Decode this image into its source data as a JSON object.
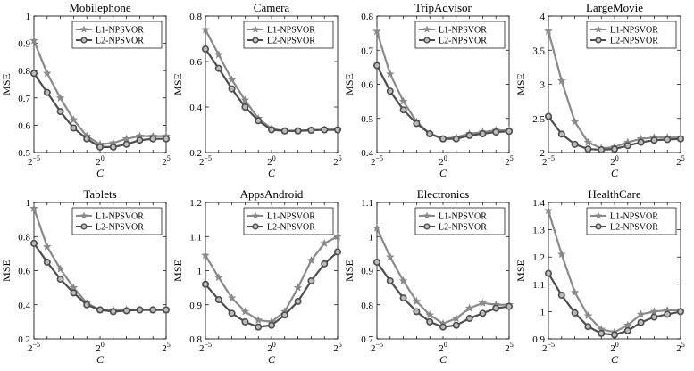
{
  "figure": {
    "ylabel": "MSE",
    "xlabel": "C"
  },
  "colors": {
    "L1": "#8a8a8a",
    "L2": "#4d4d4d",
    "axis": "#000000"
  },
  "chart_data": [
    {
      "type": "line",
      "title": "Mobilephone",
      "xlabel": "C",
      "ylabel": "MSE",
      "x_exponents": [
        -5,
        -4,
        -3,
        -2,
        -1,
        0,
        1,
        2,
        3,
        4,
        5
      ],
      "x_ticks": [
        {
          "base": "2",
          "exp": "−5",
          "value": -5
        },
        {
          "base": "2",
          "exp": "0",
          "value": 0
        },
        {
          "base": "2",
          "exp": "5",
          "value": 5
        }
      ],
      "ylim": [
        0.5,
        1
      ],
      "yticks": [
        "0.5",
        "0.6",
        "0.7",
        "0.8",
        "0.9",
        "1"
      ],
      "legend_position": "top-right",
      "series": [
        {
          "name": "L1-NPSVOR",
          "marker": "star",
          "values": [
            0.91,
            0.79,
            0.7,
            0.62,
            0.56,
            0.53,
            0.535,
            0.55,
            0.56,
            0.56,
            0.56
          ]
        },
        {
          "name": "L2-NPSVOR",
          "marker": "circle",
          "values": [
            0.79,
            0.72,
            0.65,
            0.59,
            0.55,
            0.52,
            0.52,
            0.53,
            0.545,
            0.55,
            0.55
          ]
        }
      ]
    },
    {
      "type": "line",
      "title": "Camera",
      "xlabel": "C",
      "ylabel": "MSE",
      "x_exponents": [
        -5,
        -4,
        -3,
        -2,
        -1,
        0,
        1,
        2,
        3,
        4,
        5
      ],
      "x_ticks": [
        {
          "base": "2",
          "exp": "−5",
          "value": -5
        },
        {
          "base": "2",
          "exp": "0",
          "value": 0
        },
        {
          "base": "2",
          "exp": "5",
          "value": 5
        }
      ],
      "ylim": [
        0.2,
        0.8
      ],
      "yticks": [
        "0.2",
        "0.4",
        "0.6",
        "0.8"
      ],
      "legend_position": "top-right",
      "series": [
        {
          "name": "L1-NPSVOR",
          "marker": "star",
          "values": [
            0.74,
            0.63,
            0.52,
            0.43,
            0.35,
            0.305,
            0.295,
            0.295,
            0.298,
            0.3,
            0.3
          ]
        },
        {
          "name": "L2-NPSVOR",
          "marker": "circle",
          "values": [
            0.655,
            0.57,
            0.48,
            0.4,
            0.34,
            0.3,
            0.295,
            0.295,
            0.298,
            0.3,
            0.3
          ]
        }
      ]
    },
    {
      "type": "line",
      "title": "TripAdvisor",
      "xlabel": "C",
      "ylabel": "MSE",
      "x_exponents": [
        -5,
        -4,
        -3,
        -2,
        -1,
        0,
        1,
        2,
        3,
        4,
        5
      ],
      "x_ticks": [
        {
          "base": "2",
          "exp": "−5",
          "value": -5
        },
        {
          "base": "2",
          "exp": "0",
          "value": 0
        },
        {
          "base": "2",
          "exp": "5",
          "value": 5
        }
      ],
      "ylim": [
        0.4,
        0.8
      ],
      "yticks": [
        "0.4",
        "0.5",
        "0.6",
        "0.7",
        "0.8"
      ],
      "legend_position": "top-right",
      "series": [
        {
          "name": "L1-NPSVOR",
          "marker": "star",
          "values": [
            0.755,
            0.63,
            0.55,
            0.49,
            0.455,
            0.44,
            0.445,
            0.455,
            0.46,
            0.465,
            0.465
          ]
        },
        {
          "name": "L2-NPSVOR",
          "marker": "circle",
          "values": [
            0.655,
            0.58,
            0.525,
            0.485,
            0.455,
            0.44,
            0.44,
            0.45,
            0.455,
            0.46,
            0.462
          ]
        }
      ]
    },
    {
      "type": "line",
      "title": "LargeMovie",
      "xlabel": "C",
      "ylabel": "MSE",
      "x_exponents": [
        -5,
        -4,
        -3,
        -2,
        -1,
        0,
        1,
        2,
        3,
        4,
        5
      ],
      "x_ticks": [
        {
          "base": "2",
          "exp": "−5",
          "value": -5
        },
        {
          "base": "2",
          "exp": "0",
          "value": 0
        },
        {
          "base": "2",
          "exp": "5",
          "value": 5
        }
      ],
      "ylim": [
        2,
        4
      ],
      "yticks": [
        "2",
        "2.5",
        "3",
        "3.5",
        "4"
      ],
      "legend_position": "top-right",
      "series": [
        {
          "name": "L1-NPSVOR",
          "marker": "star",
          "values": [
            3.78,
            3.05,
            2.45,
            2.15,
            2.06,
            2.08,
            2.15,
            2.2,
            2.22,
            2.22,
            2.22
          ]
        },
        {
          "name": "L2-NPSVOR",
          "marker": "circle",
          "values": [
            2.53,
            2.27,
            2.12,
            2.05,
            2.04,
            2.05,
            2.1,
            2.15,
            2.18,
            2.19,
            2.2
          ]
        }
      ]
    },
    {
      "type": "line",
      "title": "Tablets",
      "xlabel": "C",
      "ylabel": "MSE",
      "x_exponents": [
        -5,
        -4,
        -3,
        -2,
        -1,
        0,
        1,
        2,
        3,
        4,
        5
      ],
      "x_ticks": [
        {
          "base": "2",
          "exp": "−5",
          "value": -5
        },
        {
          "base": "2",
          "exp": "0",
          "value": 0
        },
        {
          "base": "2",
          "exp": "5",
          "value": 5
        }
      ],
      "ylim": [
        0.2,
        1
      ],
      "yticks": [
        "0.2",
        "0.4",
        "0.6",
        "0.8",
        "1"
      ],
      "legend_position": "top-right",
      "series": [
        {
          "name": "L1-NPSVOR",
          "marker": "star",
          "values": [
            0.965,
            0.74,
            0.61,
            0.5,
            0.41,
            0.37,
            0.37,
            0.37,
            0.37,
            0.37,
            0.37
          ]
        },
        {
          "name": "L2-NPSVOR",
          "marker": "circle",
          "values": [
            0.76,
            0.65,
            0.55,
            0.47,
            0.4,
            0.37,
            0.36,
            0.365,
            0.37,
            0.37,
            0.37
          ]
        }
      ]
    },
    {
      "type": "line",
      "title": "AppsAndroid",
      "xlabel": "C",
      "ylabel": "MSE",
      "x_exponents": [
        -5,
        -4,
        -3,
        -2,
        -1,
        0,
        1,
        2,
        3,
        4,
        5
      ],
      "x_ticks": [
        {
          "base": "2",
          "exp": "−5",
          "value": -5
        },
        {
          "base": "2",
          "exp": "0",
          "value": 0
        },
        {
          "base": "2",
          "exp": "5",
          "value": 5
        }
      ],
      "ylim": [
        0.8,
        1.2
      ],
      "yticks": [
        "0.8",
        "0.9",
        "1",
        "1.1",
        "1.2"
      ],
      "legend_position": "top-right",
      "series": [
        {
          "name": "L1-NPSVOR",
          "marker": "star",
          "values": [
            1.045,
            0.98,
            0.92,
            0.88,
            0.855,
            0.85,
            0.88,
            0.95,
            1.03,
            1.08,
            1.1
          ]
        },
        {
          "name": "L2-NPSVOR",
          "marker": "circle",
          "values": [
            0.96,
            0.915,
            0.875,
            0.85,
            0.835,
            0.84,
            0.87,
            0.91,
            0.97,
            1.02,
            1.055
          ]
        }
      ]
    },
    {
      "type": "line",
      "title": "Electronics",
      "xlabel": "C",
      "ylabel": "MSE",
      "x_exponents": [
        -5,
        -4,
        -3,
        -2,
        -1,
        0,
        1,
        2,
        3,
        4,
        5
      ],
      "x_ticks": [
        {
          "base": "2",
          "exp": "−5",
          "value": -5
        },
        {
          "base": "2",
          "exp": "0",
          "value": 0
        },
        {
          "base": "2",
          "exp": "5",
          "value": 5
        }
      ],
      "ylim": [
        0.7,
        1.1
      ],
      "yticks": [
        "0.7",
        "0.8",
        "0.9",
        "1",
        "1.1"
      ],
      "legend_position": "top-right",
      "series": [
        {
          "name": "L1-NPSVOR",
          "marker": "star",
          "values": [
            1.025,
            0.94,
            0.87,
            0.81,
            0.77,
            0.745,
            0.76,
            0.79,
            0.805,
            0.8,
            0.8
          ]
        },
        {
          "name": "L2-NPSVOR",
          "marker": "circle",
          "values": [
            0.925,
            0.87,
            0.82,
            0.78,
            0.75,
            0.735,
            0.74,
            0.76,
            0.775,
            0.79,
            0.795
          ]
        }
      ]
    },
    {
      "type": "line",
      "title": "HealthCare",
      "xlabel": "C",
      "ylabel": "MSE",
      "x_exponents": [
        -5,
        -4,
        -3,
        -2,
        -1,
        0,
        1,
        2,
        3,
        4,
        5
      ],
      "x_ticks": [
        {
          "base": "2",
          "exp": "−5",
          "value": -5
        },
        {
          "base": "2",
          "exp": "0",
          "value": 0
        },
        {
          "base": "2",
          "exp": "5",
          "value": 5
        }
      ],
      "ylim": [
        0.9,
        1.4
      ],
      "yticks": [
        "0.9",
        "1",
        "1.1",
        "1.2",
        "1.3",
        "1.4"
      ],
      "legend_position": "top-right",
      "series": [
        {
          "name": "L1-NPSVOR",
          "marker": "star",
          "values": [
            1.37,
            1.21,
            1.07,
            0.985,
            0.935,
            0.925,
            0.95,
            0.99,
            1.0,
            1.005,
            1.005
          ]
        },
        {
          "name": "L2-NPSVOR",
          "marker": "circle",
          "values": [
            1.14,
            1.06,
            0.995,
            0.945,
            0.92,
            0.915,
            0.93,
            0.96,
            0.98,
            0.99,
            1.0
          ]
        }
      ]
    }
  ]
}
